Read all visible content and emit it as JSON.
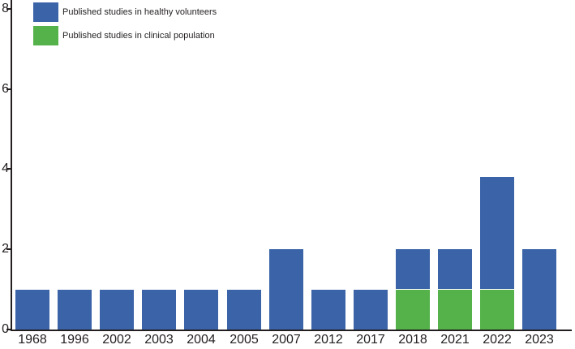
{
  "chart_data": {
    "type": "bar",
    "stacked": true,
    "title": "",
    "xlabel": "",
    "ylabel": "",
    "categories": [
      "1968",
      "1996",
      "2002",
      "2003",
      "2004",
      "2005",
      "2007",
      "2012",
      "2017",
      "2018",
      "2021",
      "2022",
      "2023"
    ],
    "series": [
      {
        "name": "Published studies in healthy volunteers",
        "color": "#3b64a8",
        "values": [
          1,
          1,
          1,
          1,
          1,
          1,
          2,
          1,
          1,
          1,
          1,
          2.8,
          2
        ]
      },
      {
        "name": "Published studies in clinical population",
        "color": "#55b24b",
        "values": [
          0,
          0,
          0,
          0,
          0,
          0,
          0,
          0,
          0,
          1,
          1,
          1,
          0
        ]
      }
    ],
    "totals": [
      1,
      1,
      1,
      1,
      1,
      1,
      2,
      1,
      1,
      2,
      2,
      3.8,
      2
    ],
    "ylim": [
      0,
      8
    ],
    "yticks": [
      0,
      2,
      4,
      6,
      8
    ],
    "grid": false,
    "legend_position": "top-left",
    "axis_color": "#231f20",
    "background_color": "#ffffff"
  }
}
